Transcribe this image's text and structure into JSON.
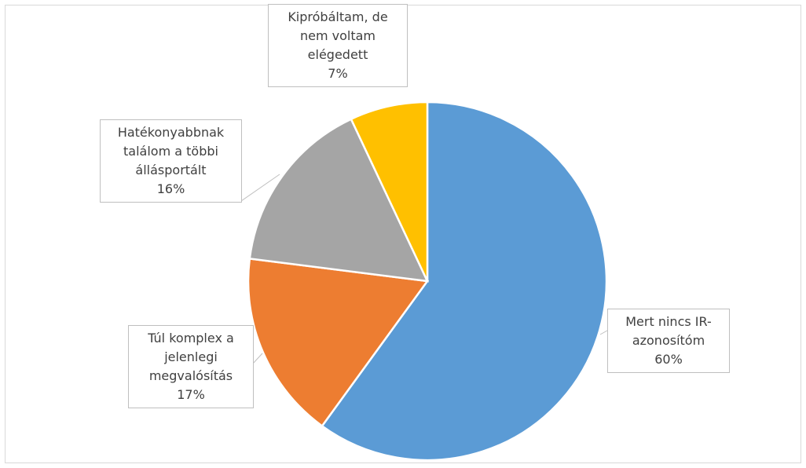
{
  "chart_data": {
    "type": "pie",
    "categories": [
      "Mert nincs IR-azonosítóm",
      "Túl komplex a jelenlegi megvalósítás",
      "Hatékonyabbnak találom a többi állásportált",
      "Kipróbáltam, de nem voltam elégedett"
    ],
    "values": [
      60,
      17,
      16,
      7
    ],
    "value_labels": [
      "60%",
      "17%",
      "16%",
      "7%"
    ],
    "colors": [
      "#5b9bd5",
      "#ed7d31",
      "#a5a5a5",
      "#ffc000"
    ]
  }
}
